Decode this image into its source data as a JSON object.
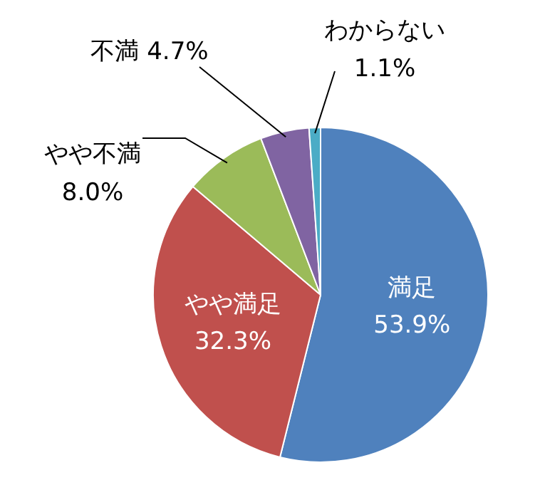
{
  "chart_data": {
    "type": "pie",
    "categories": [
      "満足",
      "やや満足",
      "やや不満",
      "不満",
      "わからない"
    ],
    "values": [
      53.9,
      32.3,
      8.0,
      4.7,
      1.1
    ],
    "value_labels": [
      "53.9%",
      "32.3%",
      "8.0%",
      "4.7%",
      "1.1%"
    ],
    "colors": [
      "#4f81bd",
      "#c0504d",
      "#9bbb59",
      "#8064a2",
      "#4bacc6"
    ],
    "legend": false
  }
}
